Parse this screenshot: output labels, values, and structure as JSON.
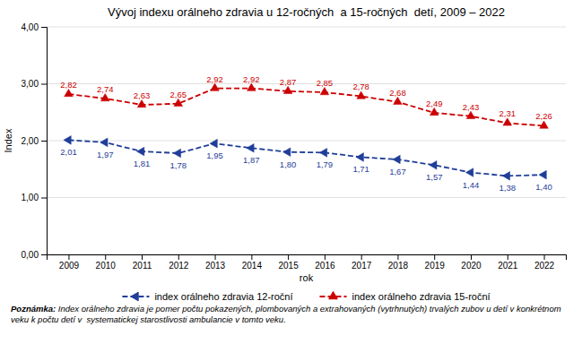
{
  "chart_data": {
    "type": "line",
    "title": "Vývoj indexu orálneho zdravia u 12-ročných  a 15-ročných  detí, 2009 – 2022",
    "x_label": "rok",
    "y_label": "Index",
    "x": [
      2009,
      2010,
      2011,
      2012,
      2013,
      2014,
      2015,
      2016,
      2017,
      2018,
      2019,
      2020,
      2021,
      2022
    ],
    "xlim": [
      2008.4,
      2022.6
    ],
    "xticks": [
      2009,
      2010,
      2011,
      2012,
      2013,
      2014,
      2015,
      2016,
      2017,
      2018,
      2019,
      2020,
      2021,
      2022
    ],
    "ylim": [
      0.0,
      4.0
    ],
    "yticks": [
      {
        "value": 0.0,
        "label": "0,00"
      },
      {
        "value": 1.0,
        "label": "1,00"
      },
      {
        "value": 2.0,
        "label": "2,00"
      },
      {
        "value": 3.0,
        "label": "3,00"
      },
      {
        "value": 4.0,
        "label": "4,00"
      }
    ],
    "grid": "y",
    "legend": "bottom",
    "data_labels": true,
    "series": [
      {
        "name": "index orálneho zdravia 12-roční",
        "color": "#1f3d99",
        "marker": "triangle-left",
        "line_style": "dashed",
        "values": [
          2.01,
          1.97,
          1.81,
          1.78,
          1.95,
          1.87,
          1.8,
          1.79,
          1.71,
          1.67,
          1.57,
          1.44,
          1.38,
          1.4
        ],
        "value_labels": [
          "2,01",
          "1,97",
          "1,81",
          "1,78",
          "1,95",
          "1,87",
          "1,80",
          "1,79",
          "1,71",
          "1,67",
          "1,57",
          "1,44",
          "1,38",
          "1,40"
        ]
      },
      {
        "name": "index orálneho zdravia 15-roční",
        "color": "#cc0000",
        "marker": "triangle-up",
        "line_style": "dashed",
        "values": [
          2.82,
          2.74,
          2.63,
          2.65,
          2.92,
          2.92,
          2.87,
          2.85,
          2.78,
          2.68,
          2.49,
          2.43,
          2.31,
          2.26
        ],
        "value_labels": [
          "2,82",
          "2,74",
          "2,63",
          "2,65",
          "2,92",
          "2,92",
          "2,87",
          "2,85",
          "2,78",
          "2,68",
          "2,49",
          "2,43",
          "2,31",
          "2,26"
        ]
      }
    ],
    "annotations": [
      "Poznámka:",
      "Index orálneho zdravia je pomer počtu pokazených, plombovaných a extrahovaných (vytrhnutých) trvalých zubov u detí v konkrétnom veku k počtu detí v  systematickej starostlivosti ambulancie v tomto veku."
    ]
  }
}
